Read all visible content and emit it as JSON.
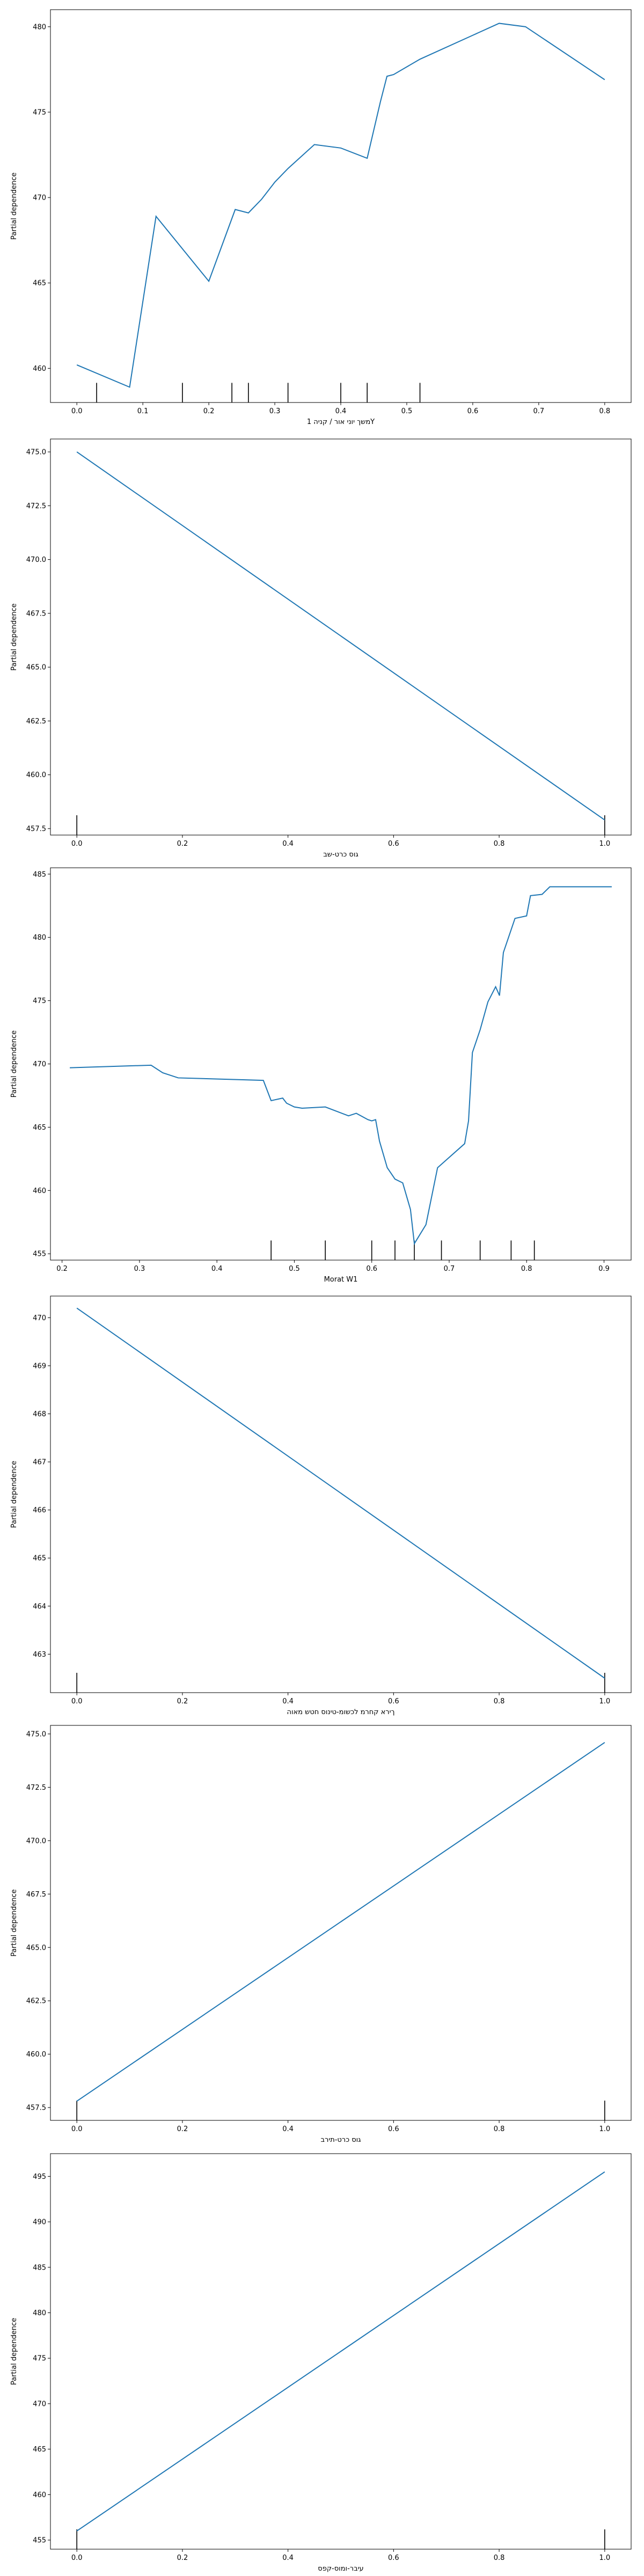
{
  "chart_data": [
    {
      "type": "line",
      "title": "",
      "xlabel": "משך יוני אור / קניה 1Y",
      "ylabel": "Partial dependence",
      "xlim": [
        -0.04,
        0.84
      ],
      "ylim": [
        458.0,
        481.0
      ],
      "xticks": [
        0.0,
        0.1,
        0.2,
        0.3,
        0.4,
        0.5,
        0.6,
        0.7,
        0.8
      ],
      "xtick_labels": [
        "0.0",
        "0.1",
        "0.2",
        "0.3",
        "0.4",
        "0.5",
        "0.6",
        "0.7",
        "0.8"
      ],
      "yticks": [
        460,
        465,
        470,
        475,
        480
      ],
      "ytick_labels": [
        "460",
        "465",
        "470",
        "475",
        "480"
      ],
      "x": [
        0.0,
        0.08,
        0.12,
        0.2,
        0.24,
        0.26,
        0.28,
        0.3,
        0.32,
        0.36,
        0.4,
        0.44,
        0.46,
        0.47,
        0.48,
        0.52,
        0.6,
        0.64,
        0.68,
        0.8
      ],
      "y": [
        460.2,
        458.9,
        468.9,
        465.1,
        469.3,
        469.1,
        469.9,
        470.9,
        471.7,
        473.1,
        472.9,
        472.3,
        475.6,
        477.1,
        477.2,
        478.1,
        479.5,
        480.2,
        480.0,
        476.9
      ],
      "rug": [
        0.03,
        0.16,
        0.235,
        0.26,
        0.32,
        0.4,
        0.44,
        0.52
      ]
    },
    {
      "type": "line",
      "title": "",
      "xlabel": "גוס כרט-שב",
      "ylabel": "Partial dependence",
      "xlim": [
        -0.05,
        1.05
      ],
      "ylim": [
        457.2,
        475.6
      ],
      "xticks": [
        0.0,
        0.2,
        0.4,
        0.6,
        0.8,
        1.0
      ],
      "xtick_labels": [
        "0.0",
        "0.2",
        "0.4",
        "0.6",
        "0.8",
        "1.0"
      ],
      "yticks": [
        457.5,
        460.0,
        462.5,
        465.0,
        467.5,
        470.0,
        472.5,
        475.0
      ],
      "ytick_labels": [
        "457.5",
        "460.0",
        "462.5",
        "465.0",
        "467.5",
        "470.0",
        "472.5",
        "475.0"
      ],
      "x": [
        0.0,
        1.0
      ],
      "y": [
        475.0,
        457.9
      ],
      "rug": [
        0.0,
        1.0
      ]
    },
    {
      "type": "line",
      "title": "",
      "xlabel": "Morat W1",
      "ylabel": "Partial dependence",
      "xlim": [
        0.185,
        0.935
      ],
      "ylim": [
        454.5,
        485.5
      ],
      "xticks": [
        0.2,
        0.3,
        0.4,
        0.5,
        0.6,
        0.7,
        0.8,
        0.9
      ],
      "xtick_labels": [
        "0.2",
        "0.3",
        "0.4",
        "0.5",
        "0.6",
        "0.7",
        "0.8",
        "0.9"
      ],
      "yticks": [
        455,
        460,
        465,
        470,
        475,
        480,
        485
      ],
      "ytick_labels": [
        "455",
        "460",
        "465",
        "470",
        "475",
        "480",
        "485"
      ],
      "x": [
        0.21,
        0.315,
        0.33,
        0.35,
        0.46,
        0.47,
        0.485,
        0.49,
        0.5,
        0.51,
        0.54,
        0.57,
        0.58,
        0.595,
        0.6,
        0.605,
        0.61,
        0.62,
        0.63,
        0.64,
        0.65,
        0.655,
        0.66,
        0.67,
        0.685,
        0.72,
        0.725,
        0.73,
        0.74,
        0.75,
        0.76,
        0.765,
        0.77,
        0.785,
        0.8,
        0.805,
        0.82,
        0.83,
        0.91
      ],
      "y": [
        469.7,
        469.9,
        469.3,
        468.9,
        468.7,
        467.1,
        467.3,
        466.9,
        466.6,
        466.5,
        466.6,
        465.9,
        466.1,
        465.6,
        465.5,
        465.6,
        463.9,
        461.8,
        460.9,
        460.6,
        458.5,
        455.8,
        456.3,
        457.3,
        461.8,
        463.7,
        465.5,
        470.9,
        472.7,
        474.9,
        476.1,
        475.4,
        478.8,
        481.5,
        481.7,
        483.3,
        483.4,
        484.0,
        484.0
      ],
      "rug": [
        0.47,
        0.54,
        0.6,
        0.63,
        0.655,
        0.69,
        0.74,
        0.78,
        0.81
      ]
    },
    {
      "type": "line",
      "title": "",
      "xlabel": "ךירא קחרמ לכשומ-טינוס חטש מאוה",
      "ylabel": "Partial dependence",
      "xlim": [
        -0.05,
        1.05
      ],
      "ylim": [
        462.2,
        470.45
      ],
      "xticks": [
        0.0,
        0.2,
        0.4,
        0.6,
        0.8,
        1.0
      ],
      "xtick_labels": [
        "0.0",
        "0.2",
        "0.4",
        "0.6",
        "0.8",
        "1.0"
      ],
      "yticks": [
        463,
        464,
        465,
        466,
        467,
        468,
        469,
        470
      ],
      "ytick_labels": [
        "463",
        "464",
        "465",
        "466",
        "467",
        "468",
        "469",
        "470"
      ],
      "x": [
        0.0,
        1.0
      ],
      "y": [
        470.2,
        462.5
      ],
      "rug": [
        0.0,
        1.0
      ]
    },
    {
      "type": "line",
      "title": "",
      "xlabel": "גוס כרט-תירב",
      "ylabel": "Partial dependence",
      "xlim": [
        -0.05,
        1.05
      ],
      "ylim": [
        456.9,
        475.4
      ],
      "xticks": [
        0.0,
        0.2,
        0.4,
        0.6,
        0.8,
        1.0
      ],
      "xtick_labels": [
        "0.0",
        "0.2",
        "0.4",
        "0.6",
        "0.8",
        "1.0"
      ],
      "yticks": [
        457.5,
        460.0,
        462.5,
        465.0,
        467.5,
        470.0,
        472.5,
        475.0
      ],
      "ytick_labels": [
        "457.5",
        "460.0",
        "462.5",
        "465.0",
        "467.5",
        "470.0",
        "472.5",
        "475.0"
      ],
      "x": [
        0.0,
        1.0
      ],
      "y": [
        457.8,
        474.6
      ],
      "rug": [
        0.0,
        1.0
      ]
    },
    {
      "type": "line",
      "title": "",
      "xlabel": "עיבר-ומוס-קפס",
      "ylabel": "Partial dependence",
      "xlim": [
        -0.05,
        1.05
      ],
      "ylim": [
        454.0,
        497.5
      ],
      "xticks": [
        0.0,
        0.2,
        0.4,
        0.6,
        0.8,
        1.0
      ],
      "xtick_labels": [
        "0.0",
        "0.2",
        "0.4",
        "0.6",
        "0.8",
        "1.0"
      ],
      "yticks": [
        455,
        460,
        465,
        470,
        475,
        480,
        485,
        490,
        495
      ],
      "ytick_labels": [
        "455",
        "460",
        "465",
        "470",
        "475",
        "480",
        "485",
        "490",
        "495"
      ],
      "x": [
        0.0,
        1.0
      ],
      "y": [
        456.0,
        495.5
      ],
      "rug": [
        0.0,
        1.0
      ]
    }
  ]
}
